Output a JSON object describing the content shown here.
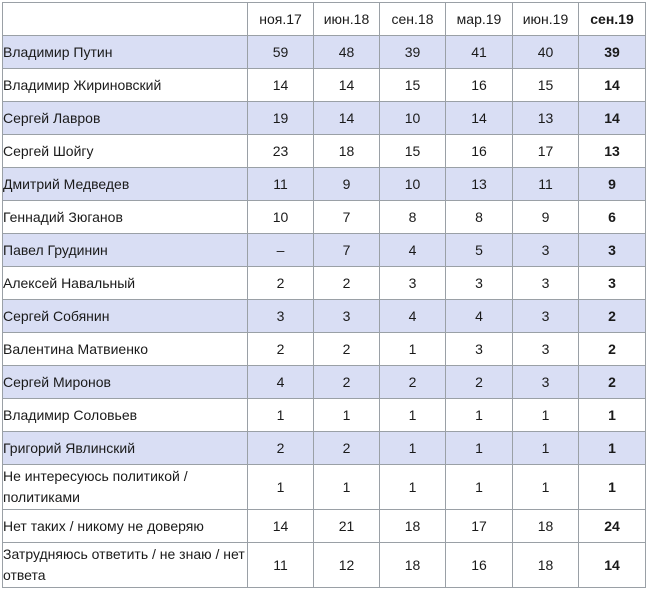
{
  "table": {
    "columns": [
      "ноя.17",
      "июн.18",
      "сен.18",
      "мар.19",
      "июн.19",
      "сен.19"
    ],
    "rows": [
      {
        "name": "Владимир Путин",
        "values": [
          "59",
          "48",
          "39",
          "41",
          "40",
          "39"
        ],
        "shaded": true
      },
      {
        "name": "Владимир Жириновский",
        "values": [
          "14",
          "14",
          "15",
          "16",
          "15",
          "14"
        ],
        "shaded": false
      },
      {
        "name": "Сергей Лавров",
        "values": [
          "19",
          "14",
          "10",
          "14",
          "13",
          "14"
        ],
        "shaded": true
      },
      {
        "name": "Сергей Шойгу",
        "values": [
          "23",
          "18",
          "15",
          "16",
          "17",
          "13"
        ],
        "shaded": false
      },
      {
        "name": "Дмитрий Медведев",
        "values": [
          "11",
          "9",
          "10",
          "13",
          "11",
          "9"
        ],
        "shaded": true
      },
      {
        "name": "Геннадий Зюганов",
        "values": [
          "10",
          "7",
          "8",
          "8",
          "9",
          "6"
        ],
        "shaded": false
      },
      {
        "name": "Павел Грудинин",
        "values": [
          "–",
          "7",
          "4",
          "5",
          "3",
          "3"
        ],
        "shaded": true
      },
      {
        "name": "Алексей Навальный",
        "values": [
          "2",
          "2",
          "3",
          "3",
          "3",
          "3"
        ],
        "shaded": false
      },
      {
        "name": "Сергей Собянин",
        "values": [
          "3",
          "3",
          "4",
          "4",
          "3",
          "2"
        ],
        "shaded": true
      },
      {
        "name": "Валентина Матвиенко",
        "values": [
          "2",
          "2",
          "1",
          "3",
          "3",
          "2"
        ],
        "shaded": false
      },
      {
        "name": "Сергей Миронов",
        "values": [
          "4",
          "2",
          "2",
          "2",
          "3",
          "2"
        ],
        "shaded": true
      },
      {
        "name": "Владимир Соловьев",
        "values": [
          "1",
          "1",
          "1",
          "1",
          "1",
          "1"
        ],
        "shaded": false
      },
      {
        "name": "Григорий Явлинский",
        "values": [
          "2",
          "2",
          "1",
          "1",
          "1",
          "1"
        ],
        "shaded": true
      },
      {
        "name": "Не интересуюсь политикой / политиками",
        "values": [
          "1",
          "1",
          "1",
          "1",
          "1",
          "1"
        ],
        "shaded": false
      },
      {
        "name": "Нет таких / никому не доверяю",
        "values": [
          "14",
          "21",
          "18",
          "17",
          "18",
          "24"
        ],
        "shaded": false
      },
      {
        "name": "Затрудняюсь ответить / не знаю / нет ответа",
        "values": [
          "11",
          "12",
          "18",
          "16",
          "18",
          "14"
        ],
        "shaded": false
      }
    ]
  }
}
